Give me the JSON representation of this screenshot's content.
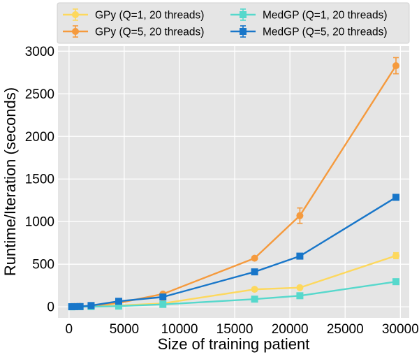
{
  "chart_data": {
    "type": "line",
    "title": "",
    "xlabel": "Size of training patient",
    "ylabel": "Runtime/Iteration (seconds)",
    "xlim": [
      -1000,
      30800
    ],
    "ylim": [
      -130,
      3060
    ],
    "xticks": [
      0,
      5000,
      10000,
      15000,
      20000,
      25000,
      30000
    ],
    "yticks": [
      0,
      500,
      1000,
      1500,
      2000,
      2500,
      3000
    ],
    "grid": true,
    "background": "#e5e5e5",
    "legend_position": "top, outside, two columns",
    "series": [
      {
        "name": "GPy (Q=1, 20 threads)",
        "color": "#fdd85d",
        "marker": "circle",
        "x": [
          250,
          500,
          1000,
          2000,
          4500,
          8500,
          16800,
          20900,
          29600
        ],
        "y": [
          1,
          2,
          3,
          6,
          15,
          40,
          205,
          225,
          600
        ],
        "err": [
          0,
          0,
          0,
          0,
          0,
          0,
          15,
          15,
          35
        ]
      },
      {
        "name": "GPy (Q=5, 20 threads)",
        "color": "#f59a3d",
        "marker": "circle",
        "x": [
          250,
          500,
          1000,
          2000,
          4500,
          8500,
          16800,
          20900,
          29600
        ],
        "y": [
          2,
          3,
          5,
          12,
          45,
          150,
          570,
          1070,
          2830
        ],
        "err": [
          0,
          0,
          0,
          0,
          0,
          10,
          10,
          90,
          95
        ]
      },
      {
        "name": "MedGP (Q=1, 20 threads)",
        "color": "#56d8cc",
        "marker": "square",
        "x": [
          250,
          500,
          1000,
          2000,
          4500,
          8500,
          16800,
          20900,
          29600
        ],
        "y": [
          0,
          1,
          1,
          2,
          8,
          28,
          90,
          130,
          295
        ],
        "err": [
          0,
          0,
          0,
          0,
          0,
          0,
          0,
          0,
          0
        ]
      },
      {
        "name": "MedGP (Q=5, 20 threads)",
        "color": "#1876c9",
        "marker": "square",
        "x": [
          250,
          500,
          1000,
          2000,
          4500,
          8500,
          16800,
          20900,
          29600
        ],
        "y": [
          1,
          2,
          3,
          15,
          65,
          115,
          410,
          595,
          1285
        ],
        "err": [
          0,
          0,
          0,
          0,
          0,
          0,
          0,
          0,
          0
        ]
      }
    ]
  }
}
